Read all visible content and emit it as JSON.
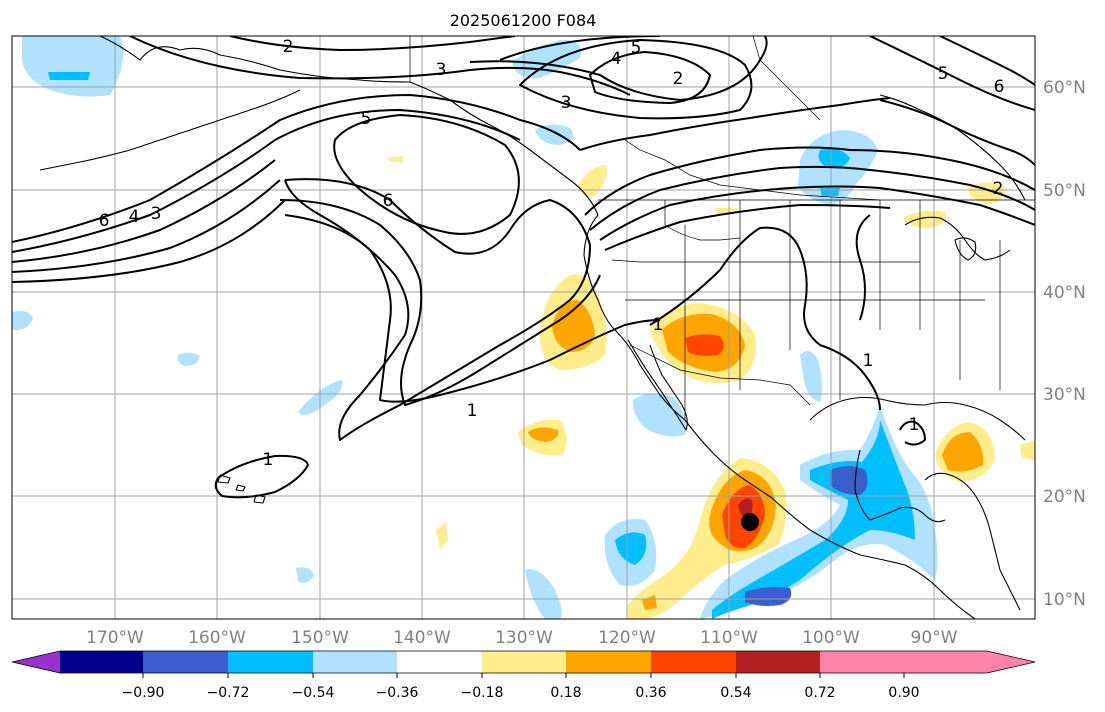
{
  "title": "2025061200 F084",
  "lon_labels": [
    "170°W",
    "160°W",
    "150°W",
    "140°W",
    "130°W",
    "120°W",
    "110°W",
    "100°W",
    "90°W"
  ],
  "lat_labels": [
    "60°N",
    "50°N",
    "40°N",
    "30°N",
    "20°N",
    "10°N"
  ],
  "colorbar": {
    "tick_labels": [
      "−0.90",
      "−0.72",
      "−0.54",
      "−0.36",
      "−0.18",
      "0.18",
      "0.36",
      "0.54",
      "0.72",
      "0.90"
    ],
    "colors": [
      "#9932cc",
      "#00008b",
      "#3a5fcd",
      "#00bfff",
      "#b0e2ff",
      "#ffffff",
      "#ffec8b",
      "#ffa500",
      "#ff4500",
      "#b22222",
      "#ff82ab"
    ],
    "extend": "both"
  },
  "contour_labels": [
    "2",
    "3",
    "5",
    "4",
    "5",
    "2",
    "3",
    "6",
    "6",
    "4",
    "3",
    "1",
    "1",
    "1",
    "1",
    "5",
    "6",
    "2",
    "1"
  ],
  "colors": {
    "grid": "#a0a0a0",
    "tick_text": "#808080",
    "marker": "#000000"
  }
}
